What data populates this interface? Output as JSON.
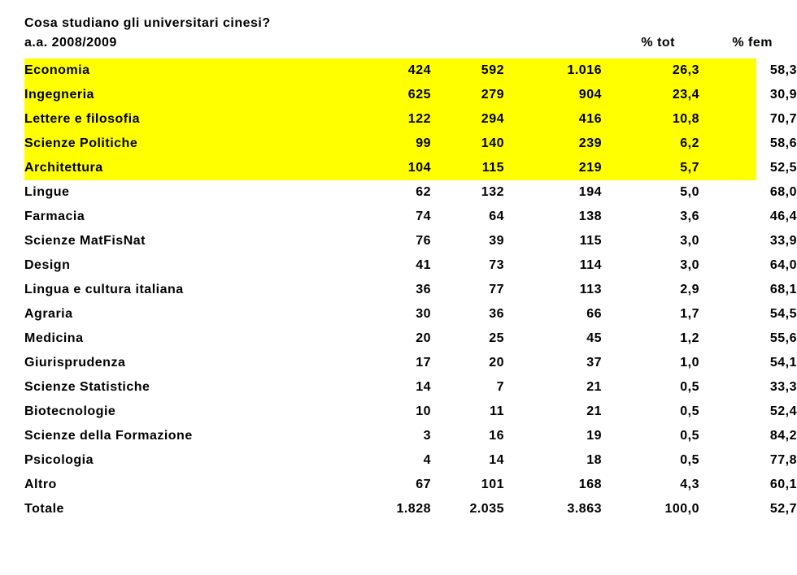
{
  "title": "Cosa studiano gli universitari cinesi?",
  "subtitle": "a.a. 2008/2009",
  "header_cols": [
    "",
    "",
    "",
    "% tot",
    "% fem"
  ],
  "highlight_color": "#ffff00",
  "text_color": "#000000",
  "font_family": "Verdana",
  "font_size_pt": 12,
  "rows": [
    {
      "label": "Economia",
      "c1": "424",
      "c2": "592",
      "c3": "1.016",
      "c4": "26,3",
      "c5": "58,3",
      "hl": true
    },
    {
      "label": "Ingegneria",
      "c1": "625",
      "c2": "279",
      "c3": "904",
      "c4": "23,4",
      "c5": "30,9",
      "hl": true
    },
    {
      "label": "Lettere e filosofia",
      "c1": "122",
      "c2": "294",
      "c3": "416",
      "c4": "10,8",
      "c5": "70,7",
      "hl": true
    },
    {
      "label": "Scienze Politiche",
      "c1": "99",
      "c2": "140",
      "c3": "239",
      "c4": "6,2",
      "c5": "58,6",
      "hl": true
    },
    {
      "label": "Architettura",
      "c1": "104",
      "c2": "115",
      "c3": "219",
      "c4": "5,7",
      "c5": "52,5",
      "hl": true
    },
    {
      "label": "Lingue",
      "c1": "62",
      "c2": "132",
      "c3": "194",
      "c4": "5,0",
      "c5": "68,0",
      "hl": false
    },
    {
      "label": "Farmacia",
      "c1": "74",
      "c2": "64",
      "c3": "138",
      "c4": "3,6",
      "c5": "46,4",
      "hl": false
    },
    {
      "label": "Scienze MatFisNat",
      "c1": "76",
      "c2": "39",
      "c3": "115",
      "c4": "3,0",
      "c5": "33,9",
      "hl": false
    },
    {
      "label": "Design",
      "c1": "41",
      "c2": "73",
      "c3": "114",
      "c4": "3,0",
      "c5": "64,0",
      "hl": false
    },
    {
      "label": "Lingua e cultura italiana",
      "c1": "36",
      "c2": "77",
      "c3": "113",
      "c4": "2,9",
      "c5": "68,1",
      "hl": false
    },
    {
      "label": "Agraria",
      "c1": "30",
      "c2": "36",
      "c3": "66",
      "c4": "1,7",
      "c5": "54,5",
      "hl": false
    },
    {
      "label": "Medicina",
      "c1": "20",
      "c2": "25",
      "c3": "45",
      "c4": "1,2",
      "c5": "55,6",
      "hl": false
    },
    {
      "label": "Giurisprudenza",
      "c1": "17",
      "c2": "20",
      "c3": "37",
      "c4": "1,0",
      "c5": "54,1",
      "hl": false
    },
    {
      "label": "Scienze Statistiche",
      "c1": "14",
      "c2": "7",
      "c3": "21",
      "c4": "0,5",
      "c5": "33,3",
      "hl": false
    },
    {
      "label": "Biotecnologie",
      "c1": "10",
      "c2": "11",
      "c3": "21",
      "c4": "0,5",
      "c5": "52,4",
      "hl": false
    },
    {
      "label": "Scienze della Formazione",
      "c1": "3",
      "c2": "16",
      "c3": "19",
      "c4": "0,5",
      "c5": "84,2",
      "hl": false
    },
    {
      "label": "Psicologia",
      "c1": "4",
      "c2": "14",
      "c3": "18",
      "c4": "0,5",
      "c5": "77,8",
      "hl": false
    },
    {
      "label": "Altro",
      "c1": "67",
      "c2": "101",
      "c3": "168",
      "c4": "4,3",
      "c5": "60,1",
      "hl": false
    },
    {
      "label": "Totale",
      "c1": "1.828",
      "c2": "2.035",
      "c3": "3.863",
      "c4": "100,0",
      "c5": "52,7",
      "hl": false
    }
  ]
}
